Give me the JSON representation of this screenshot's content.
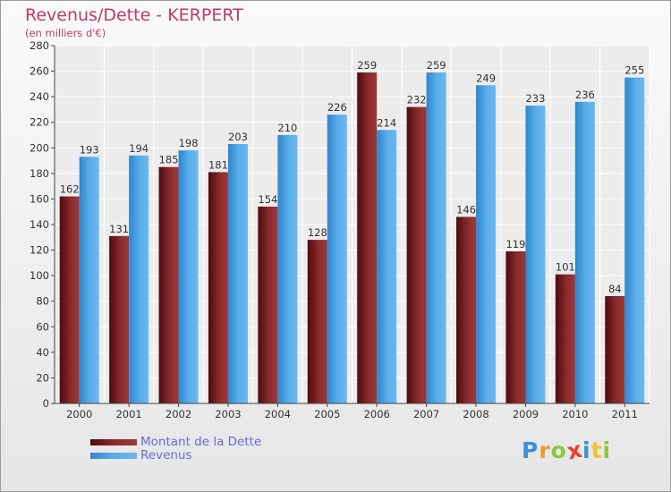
{
  "chart_data": {
    "type": "bar",
    "title": "Revenus/Dette - KERPERT",
    "subtitle": "(en milliers d'€)",
    "categories": [
      "2000",
      "2001",
      "2002",
      "2003",
      "2004",
      "2005",
      "2006",
      "2007",
      "2008",
      "2009",
      "2010",
      "2011"
    ],
    "series": [
      {
        "name": "Montant de la Dette",
        "color": "#7a1f22",
        "values": [
          162,
          131,
          185,
          181,
          154,
          128,
          259,
          232,
          146,
          119,
          101,
          84
        ]
      },
      {
        "name": "Revenus",
        "color": "#4aa3e3",
        "values": [
          193,
          194,
          198,
          203,
          210,
          226,
          214,
          259,
          249,
          233,
          236,
          255
        ]
      }
    ],
    "ylim": [
      0,
      280
    ],
    "yticks": [
      0,
      20,
      40,
      60,
      80,
      100,
      120,
      140,
      160,
      180,
      200,
      220,
      240,
      260,
      280
    ],
    "grid": true,
    "legend_position": "bottom-left"
  },
  "logo": {
    "text": "Proxiti",
    "letters": [
      {
        "ch": "P",
        "color": "#3d8fd8"
      },
      {
        "ch": "r",
        "color": "#f29a2e"
      },
      {
        "ch": "o",
        "color": "#8cc63f"
      },
      {
        "ch": "x",
        "color": "#e8412c"
      },
      {
        "ch": "i",
        "color": "#3d8fd8"
      },
      {
        "ch": "t",
        "color": "#f2c12e"
      },
      {
        "ch": "i",
        "color": "#8cc63f"
      }
    ]
  }
}
